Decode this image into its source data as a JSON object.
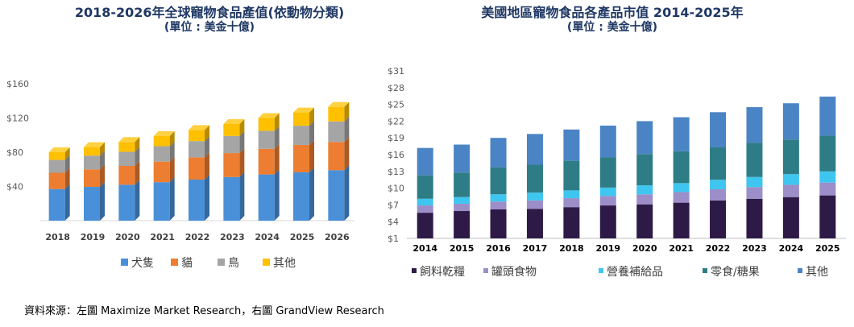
{
  "source_note": "資料來源：左圖 Maximize Market Research，右圖 GrandView Research",
  "chart_data": [
    {
      "type": "bar",
      "stacked": true,
      "title": "2018-2026年全球寵物食品產值(依動物分類)",
      "subtitle": "(單位 : 美金十億)",
      "categories": [
        "2018",
        "2019",
        "2020",
        "2021",
        "2022",
        "2023",
        "2024",
        "2025",
        "2026"
      ],
      "series": [
        {
          "name": "犬隻",
          "color": "#4a90d9",
          "values": [
            37,
            39.5,
            42,
            45,
            48,
            51,
            54,
            56.5,
            59
          ]
        },
        {
          "name": "貓",
          "color": "#ed7d31",
          "values": [
            19,
            20.5,
            22,
            24,
            26,
            28,
            30,
            32,
            33
          ]
        },
        {
          "name": "鳥",
          "color": "#a5a5a5",
          "values": [
            15,
            16,
            16.5,
            18,
            19,
            20,
            21,
            22.5,
            24
          ]
        },
        {
          "name": "其他",
          "color": "#ffc000",
          "values": [
            9,
            10,
            11.5,
            12,
            13,
            14,
            15,
            15.5,
            17
          ]
        }
      ],
      "yticks": [
        "$40",
        "$80",
        "$120",
        "$160"
      ],
      "ylim": [
        0,
        160
      ],
      "legend_position": "bottom"
    },
    {
      "type": "bar",
      "stacked": true,
      "title": "美國地區寵物食品各產品市值 2014-2025年",
      "subtitle": "(單位 : 美金十億)",
      "categories": [
        "2014",
        "2015",
        "2016",
        "2017",
        "2018",
        "2019",
        "2020",
        "2021",
        "2022",
        "2023",
        "2024",
        "2025"
      ],
      "series": [
        {
          "name": "飼料乾糧",
          "color": "#2e1a47",
          "values": [
            4.6,
            4.9,
            5.2,
            5.3,
            5.6,
            5.9,
            6.1,
            6.4,
            6.8,
            7.1,
            7.4,
            7.7
          ]
        },
        {
          "name": "罐頭食物",
          "color": "#9c8ec8",
          "values": [
            1.3,
            1.3,
            1.4,
            1.5,
            1.6,
            1.7,
            1.8,
            1.9,
            2.0,
            2.1,
            2.2,
            2.3
          ]
        },
        {
          "name": "營養補給品",
          "color": "#3ec6f0",
          "values": [
            1.2,
            1.2,
            1.3,
            1.4,
            1.4,
            1.5,
            1.6,
            1.6,
            1.7,
            1.8,
            1.9,
            2.0
          ]
        },
        {
          "name": "零食/糖果",
          "color": "#2e7d86",
          "values": [
            4.2,
            4.4,
            4.8,
            5.0,
            5.3,
            5.4,
            5.6,
            5.7,
            5.8,
            6.1,
            6.2,
            6.4
          ]
        },
        {
          "name": "其他",
          "color": "#4b84c4",
          "values": [
            4.9,
            5.0,
            5.3,
            5.5,
            5.6,
            5.7,
            5.9,
            6.1,
            6.3,
            6.4,
            6.5,
            7.0
          ]
        }
      ],
      "yticks": [
        "$1",
        "$4",
        "$7",
        "$10",
        "$13",
        "$16",
        "$19",
        "$22",
        "$25",
        "$28",
        "$31"
      ],
      "ylim": [
        1,
        31
      ],
      "legend_position": "bottom"
    }
  ]
}
